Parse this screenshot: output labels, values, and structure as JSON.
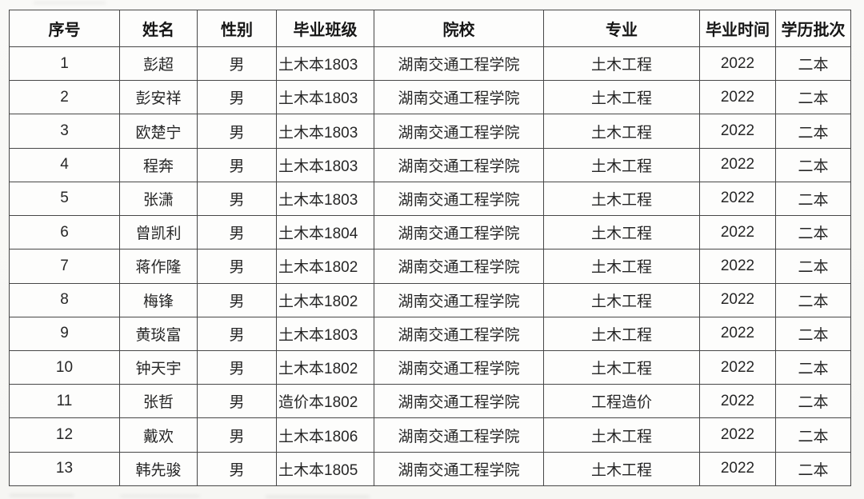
{
  "table": {
    "columns": [
      {
        "key": "index",
        "label": "序号"
      },
      {
        "key": "name",
        "label": "姓名"
      },
      {
        "key": "gender",
        "label": "性别"
      },
      {
        "key": "class",
        "label": "毕业班级"
      },
      {
        "key": "school",
        "label": "院校"
      },
      {
        "key": "major",
        "label": "专业"
      },
      {
        "key": "year",
        "label": "毕业时间"
      },
      {
        "key": "batch",
        "label": "学历批次"
      }
    ],
    "rows": [
      [
        "1",
        "彭超",
        "男",
        "土木本1803",
        "湖南交通工程学院",
        "土木工程",
        "2022",
        "二本"
      ],
      [
        "2",
        "彭安祥",
        "男",
        "土木本1803",
        "湖南交通工程学院",
        "土木工程",
        "2022",
        "二本"
      ],
      [
        "3",
        "欧楚宁",
        "男",
        "土木本1803",
        "湖南交通工程学院",
        "土木工程",
        "2022",
        "二本"
      ],
      [
        "4",
        "程奔",
        "男",
        "土木本1803",
        "湖南交通工程学院",
        "土木工程",
        "2022",
        "二本"
      ],
      [
        "5",
        "张潇",
        "男",
        "土木本1803",
        "湖南交通工程学院",
        "土木工程",
        "2022",
        "二本"
      ],
      [
        "6",
        "曾凯利",
        "男",
        "土木本1804",
        "湖南交通工程学院",
        "土木工程",
        "2022",
        "二本"
      ],
      [
        "7",
        "蒋作隆",
        "男",
        "土木本1802",
        "湖南交通工程学院",
        "土木工程",
        "2022",
        "二本"
      ],
      [
        "8",
        "梅锋",
        "男",
        "土木本1802",
        "湖南交通工程学院",
        "土木工程",
        "2022",
        "二本"
      ],
      [
        "9",
        "黄琰富",
        "男",
        "土木本1803",
        "湖南交通工程学院",
        "土木工程",
        "2022",
        "二本"
      ],
      [
        "10",
        "钟天宇",
        "男",
        "土木本1802",
        "湖南交通工程学院",
        "土木工程",
        "2022",
        "二本"
      ],
      [
        "11",
        "张哲",
        "男",
        "造价本1802",
        "湖南交通工程学院",
        "工程造价",
        "2022",
        "二本"
      ],
      [
        "12",
        "戴欢",
        "男",
        "土木本1806",
        "湖南交通工程学院",
        "土木工程",
        "2022",
        "二本"
      ],
      [
        "13",
        "韩先骏",
        "男",
        "土木本1805",
        "湖南交通工程学院",
        "土木工程",
        "2022",
        "二本"
      ]
    ]
  },
  "colors": {
    "border": "#474747",
    "text": "#262626",
    "header_text": "#161616",
    "cell_background": "#fdfdfc",
    "page_background": "#f7f7f4"
  }
}
